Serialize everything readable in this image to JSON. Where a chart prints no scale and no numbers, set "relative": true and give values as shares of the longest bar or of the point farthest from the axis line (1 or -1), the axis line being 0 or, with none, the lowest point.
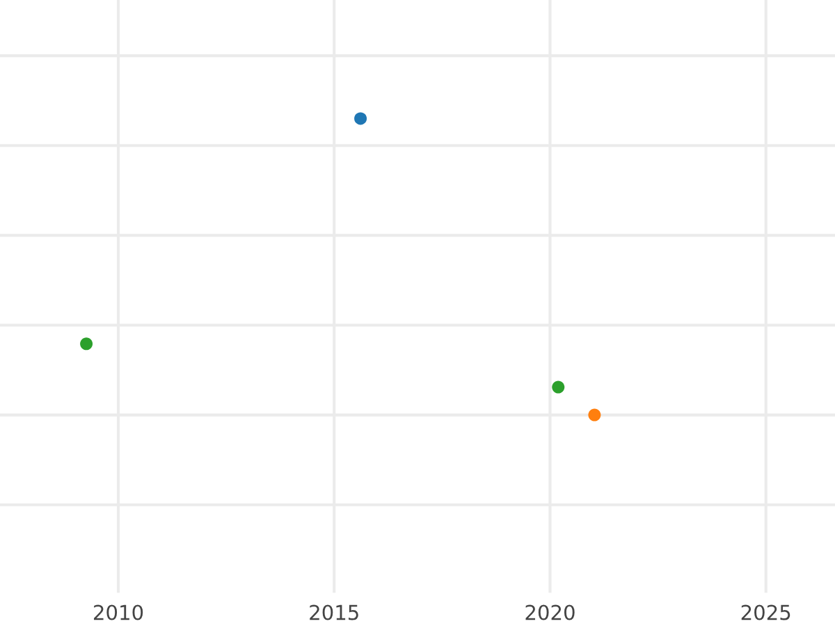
{
  "chart_data": {
    "type": "scatter",
    "relative": true,
    "xlim": [
      2007.26,
      2026.6
    ],
    "xticks": [
      2010,
      2015,
      2020,
      2025
    ],
    "grid": true,
    "marker": "circle",
    "series": [
      {
        "color": "#1f77b4",
        "x": [
          2015.61
        ],
        "values": [
          1
        ]
      },
      {
        "color": "#ff7f0e",
        "x": [
          2021.03
        ],
        "values": [
          0
        ]
      },
      {
        "color": "#2ca02c",
        "x": [
          2009.26,
          2020.19
        ],
        "values": [
          0.24,
          0.094
        ]
      }
    ]
  }
}
